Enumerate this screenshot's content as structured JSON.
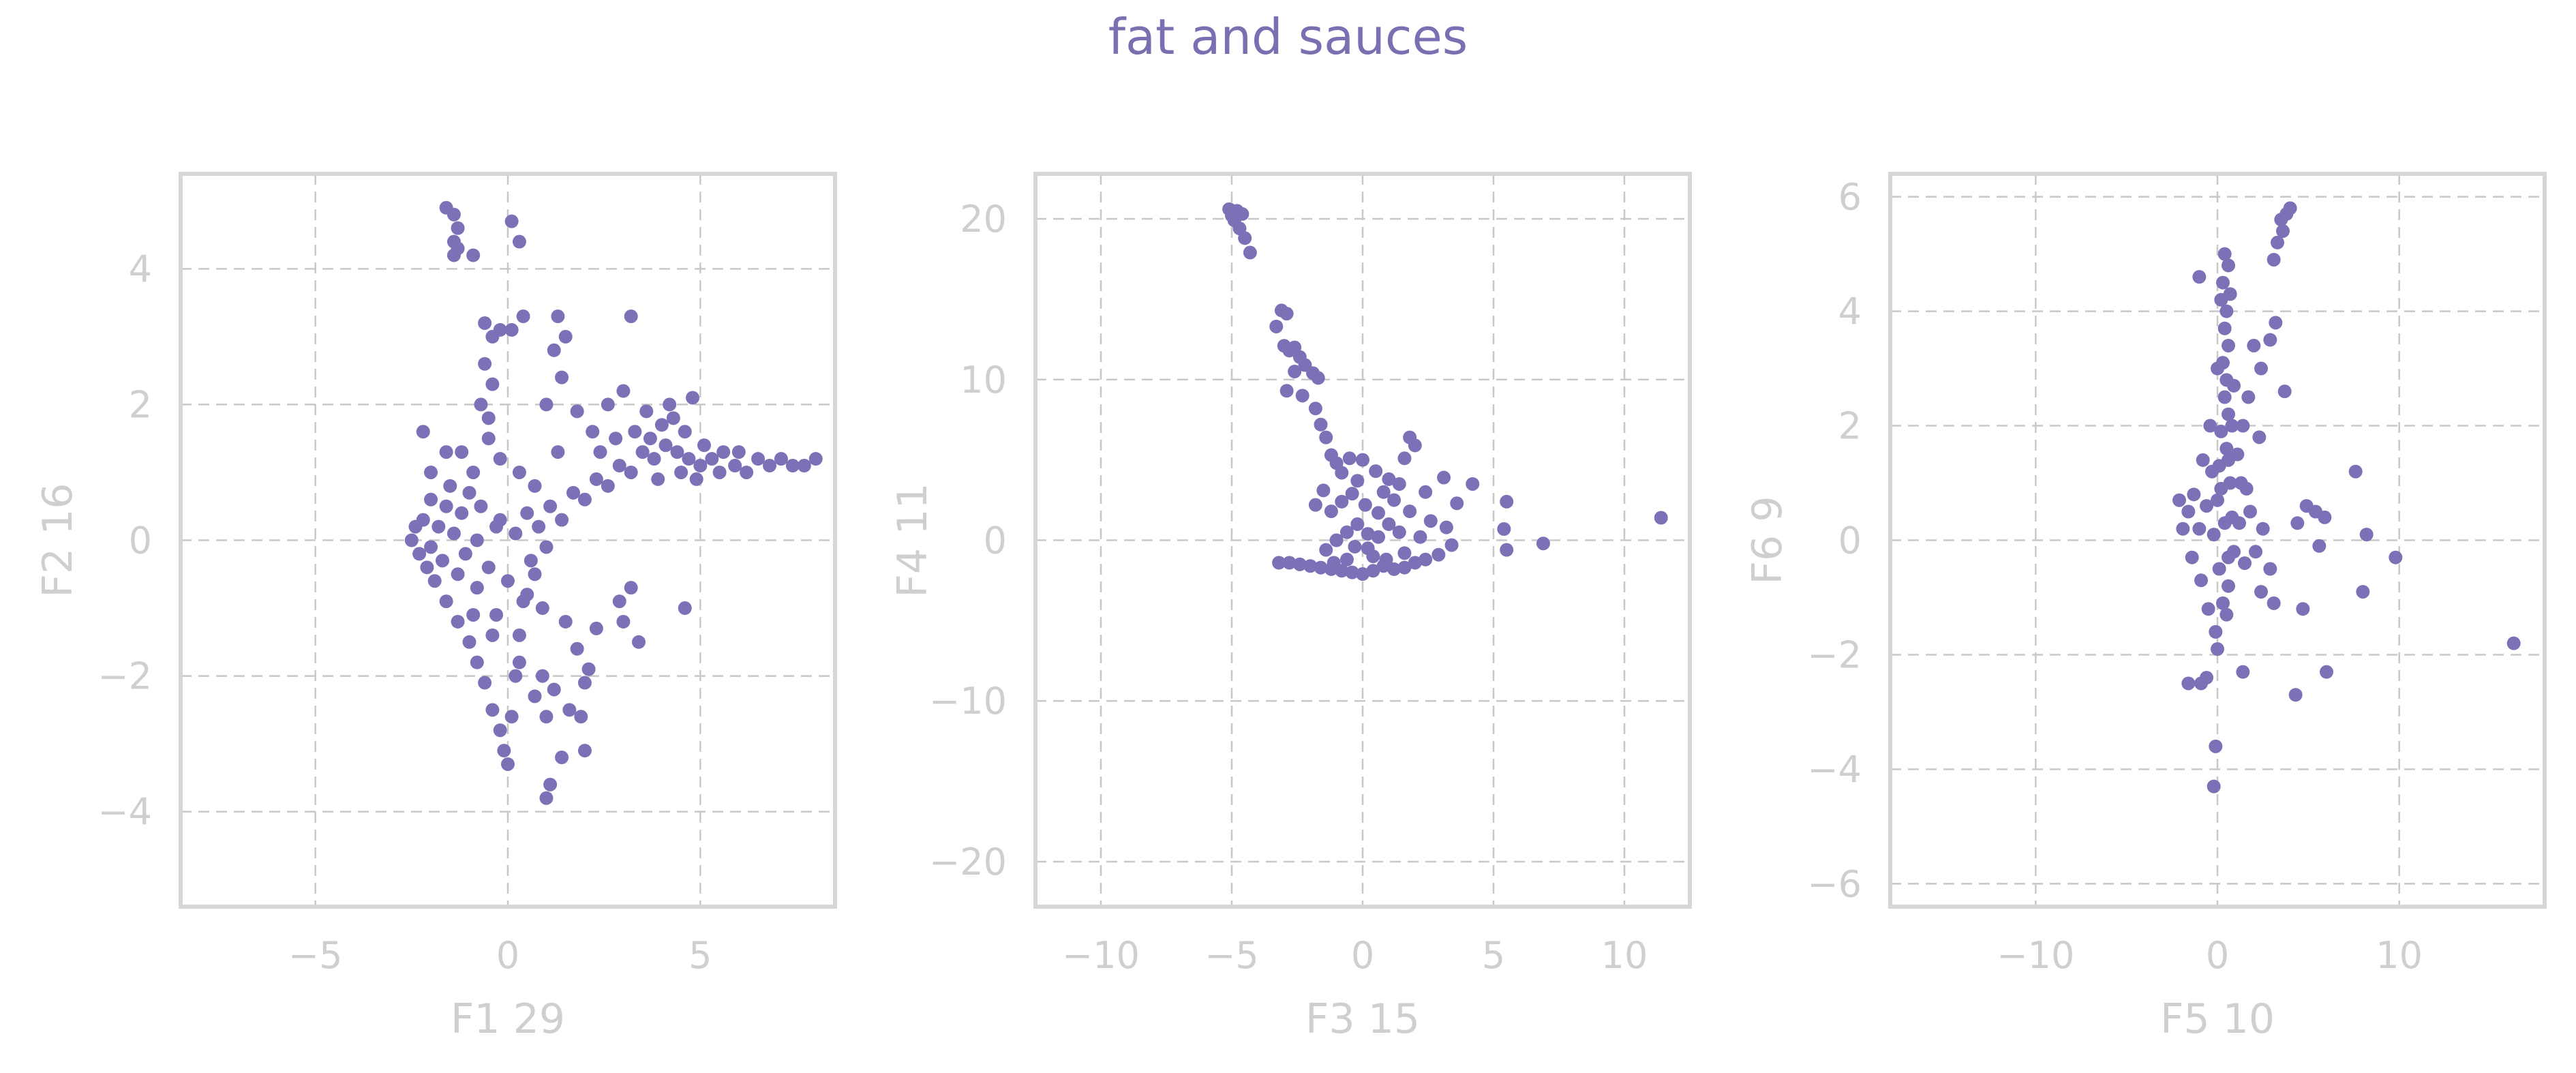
{
  "title": "fat and sauces",
  "colors": {
    "points": "#7e70b6",
    "title": "#7a6fb0",
    "axis_text": "#cfcfcf",
    "grid": "#c8c8c8",
    "frame": "#d6d6d6"
  },
  "chart_data": [
    {
      "type": "scatter",
      "xlabel": "F1 29",
      "ylabel": "F2 16",
      "xlim": [
        -8.5,
        8.5
      ],
      "ylim": [
        -5.4,
        5.4
      ],
      "xticks": [
        -5,
        0,
        5
      ],
      "yticks": [
        -4,
        -2,
        0,
        2,
        4
      ],
      "xtick_labels": [
        "−5",
        "0",
        "5"
      ],
      "ytick_labels": [
        "−4",
        "−2",
        "0",
        "2",
        "4"
      ],
      "grid": true,
      "points": [
        [
          -1.6,
          4.9
        ],
        [
          -1.4,
          4.8
        ],
        [
          -1.3,
          4.6
        ],
        [
          -1.4,
          4.4
        ],
        [
          -1.3,
          4.3
        ],
        [
          -1.4,
          4.2
        ],
        [
          -0.9,
          4.2
        ],
        [
          0.1,
          4.7
        ],
        [
          0.3,
          4.4
        ],
        [
          -2.5,
          0
        ],
        [
          -2.3,
          -0.2
        ],
        [
          -2.2,
          0.3
        ],
        [
          -2.1,
          -0.4
        ],
        [
          -2.0,
          0.6
        ],
        [
          -1.9,
          -0.6
        ],
        [
          -1.8,
          0.2
        ],
        [
          -1.6,
          -0.9
        ],
        [
          -1.5,
          0.8
        ],
        [
          -1.3,
          -1.2
        ],
        [
          -1.2,
          0.4
        ],
        [
          -1.0,
          -1.5
        ],
        [
          -0.9,
          1.0
        ],
        [
          -0.8,
          -1.8
        ],
        [
          -0.7,
          0.5
        ],
        [
          -0.6,
          -2.1
        ],
        [
          -0.5,
          1.5
        ],
        [
          -0.4,
          -2.5
        ],
        [
          -0.3,
          0.2
        ],
        [
          -0.2,
          -2.8
        ],
        [
          -0.1,
          -3.1
        ],
        [
          0.0,
          -3.3
        ],
        [
          0.1,
          -2.6
        ],
        [
          0.2,
          -2.0
        ],
        [
          0.3,
          -1.4
        ],
        [
          0.5,
          -0.8
        ],
        [
          0.6,
          -0.3
        ],
        [
          -2.0,
          -0.1
        ],
        [
          -1.7,
          -0.3
        ],
        [
          -1.4,
          0.1
        ],
        [
          -1.1,
          -0.2
        ],
        [
          -0.8,
          0.0
        ],
        [
          -0.5,
          -0.4
        ],
        [
          -0.2,
          0.3
        ],
        [
          0.2,
          0.1
        ],
        [
          0.5,
          0.4
        ],
        [
          0.8,
          0.2
        ],
        [
          1.1,
          0.5
        ],
        [
          1.4,
          0.3
        ],
        [
          1.7,
          0.7
        ],
        [
          2.0,
          0.6
        ],
        [
          2.3,
          0.9
        ],
        [
          2.6,
          0.8
        ],
        [
          2.9,
          1.1
        ],
        [
          3.2,
          1.0
        ],
        [
          3.5,
          1.3
        ],
        [
          3.8,
          1.2
        ],
        [
          4.1,
          1.4
        ],
        [
          4.4,
          1.3
        ],
        [
          4.7,
          1.2
        ],
        [
          5.0,
          1.1
        ],
        [
          5.3,
          1.2
        ],
        [
          5.6,
          1.3
        ],
        [
          5.9,
          1.1
        ],
        [
          6.2,
          1.0
        ],
        [
          6.5,
          1.2
        ],
        [
          6.8,
          1.1
        ],
        [
          7.1,
          1.2
        ],
        [
          7.4,
          1.1
        ],
        [
          7.7,
          1.1
        ],
        [
          8.0,
          1.2
        ],
        [
          5.5,
          1.0
        ],
        [
          6.0,
          1.3
        ],
        [
          4.0,
          1.7
        ],
        [
          3.6,
          1.9
        ],
        [
          4.3,
          1.8
        ],
        [
          3.0,
          2.2
        ],
        [
          2.6,
          2.0
        ],
        [
          2.2,
          1.6
        ],
        [
          1.8,
          1.9
        ],
        [
          1.4,
          2.4
        ],
        [
          1.0,
          2.0
        ],
        [
          1.2,
          2.8
        ],
        [
          1.5,
          3.0
        ],
        [
          1.3,
          3.3
        ],
        [
          3.2,
          3.3
        ],
        [
          -0.6,
          3.2
        ],
        [
          -0.4,
          3.0
        ],
        [
          -0.2,
          3.1
        ],
        [
          -0.6,
          2.6
        ],
        [
          -0.4,
          2.3
        ],
        [
          -0.7,
          2.0
        ],
        [
          -0.5,
          1.8
        ],
        [
          0.1,
          3.1
        ],
        [
          0.4,
          3.3
        ],
        [
          1.5,
          -1.2
        ],
        [
          1.8,
          -1.6
        ],
        [
          2.1,
          -1.9
        ],
        [
          1.2,
          -2.2
        ],
        [
          1.6,
          -2.5
        ],
        [
          2.0,
          -2.1
        ],
        [
          0.9,
          -2.0
        ],
        [
          1.0,
          -2.6
        ],
        [
          1.4,
          -3.2
        ],
        [
          2.0,
          -3.1
        ],
        [
          1.9,
          -2.6
        ],
        [
          2.3,
          -1.3
        ],
        [
          2.9,
          -0.9
        ],
        [
          3.4,
          -1.5
        ],
        [
          3.2,
          -0.7
        ],
        [
          4.6,
          -1.0
        ],
        [
          3.0,
          -1.2
        ],
        [
          1.0,
          -3.8
        ],
        [
          1.1,
          -3.6
        ],
        [
          0.7,
          -2.3
        ],
        [
          0.3,
          -1.8
        ],
        [
          -0.3,
          -1.1
        ],
        [
          0.9,
          -1.0
        ],
        [
          -1.0,
          0.7
        ],
        [
          -1.2,
          1.3
        ],
        [
          -2.2,
          1.6
        ],
        [
          -2.0,
          1.0
        ],
        [
          -1.6,
          1.3
        ],
        [
          -0.2,
          1.2
        ],
        [
          0.3,
          1.0
        ],
        [
          0.7,
          0.8
        ],
        [
          1.3,
          1.3
        ],
        [
          2.4,
          1.3
        ],
        [
          2.8,
          1.5
        ],
        [
          3.3,
          1.6
        ],
        [
          3.7,
          1.5
        ],
        [
          4.6,
          1.6
        ],
        [
          5.1,
          1.4
        ],
        [
          4.9,
          0.9
        ],
        [
          4.5,
          1.0
        ],
        [
          3.9,
          0.9
        ],
        [
          4.2,
          2.0
        ],
        [
          4.8,
          2.1
        ],
        [
          -0.8,
          -0.7
        ],
        [
          -1.3,
          -0.5
        ],
        [
          -0.9,
          -1.1
        ],
        [
          -0.4,
          -1.4
        ],
        [
          0.0,
          -0.6
        ],
        [
          0.4,
          -0.9
        ],
        [
          0.7,
          -0.5
        ],
        [
          1.0,
          -0.1
        ],
        [
          -1.6,
          0.5
        ],
        [
          -2.4,
          0.2
        ]
      ]
    },
    {
      "type": "scatter",
      "xlabel": "F3 15",
      "ylabel": "F4 11",
      "xlim": [
        -12.5,
        12.5
      ],
      "ylim": [
        -22.8,
        22.8
      ],
      "xticks": [
        -10,
        -5,
        0,
        5,
        10
      ],
      "yticks": [
        -20,
        -10,
        0,
        10,
        20
      ],
      "xtick_labels": [
        "−10",
        "−5",
        "0",
        "5",
        "10"
      ],
      "ytick_labels": [
        "−20",
        "−10",
        "0",
        "10",
        "20"
      ],
      "grid": true,
      "points": [
        [
          -5.1,
          20.6
        ],
        [
          -4.8,
          20.5
        ],
        [
          -4.9,
          19.9
        ],
        [
          -4.7,
          19.4
        ],
        [
          -4.5,
          18.8
        ],
        [
          -4.3,
          17.9
        ],
        [
          -5.0,
          20.2
        ],
        [
          -4.6,
          20.3
        ],
        [
          -3.1,
          14.3
        ],
        [
          -2.9,
          14.1
        ],
        [
          -3.3,
          13.3
        ],
        [
          -3.0,
          12.1
        ],
        [
          -2.8,
          11.8
        ],
        [
          -2.6,
          12.0
        ],
        [
          -2.4,
          11.4
        ],
        [
          -2.2,
          10.9
        ],
        [
          -1.9,
          10.4
        ],
        [
          -1.7,
          10.1
        ],
        [
          -2.6,
          10.5
        ],
        [
          -2.9,
          9.3
        ],
        [
          -2.3,
          9.0
        ],
        [
          -1.8,
          8.2
        ],
        [
          -1.6,
          7.2
        ],
        [
          -1.4,
          6.4
        ],
        [
          -1.2,
          5.3
        ],
        [
          -1.0,
          4.8
        ],
        [
          -0.8,
          4.2
        ],
        [
          -0.5,
          5.1
        ],
        [
          0.0,
          5.0
        ],
        [
          0.5,
          4.3
        ],
        [
          1.0,
          3.8
        ],
        [
          1.4,
          3.5
        ],
        [
          1.8,
          6.4
        ],
        [
          2.0,
          5.9
        ],
        [
          1.6,
          5.1
        ],
        [
          2.4,
          3.0
        ],
        [
          3.1,
          3.9
        ],
        [
          3.6,
          2.3
        ],
        [
          4.2,
          3.5
        ],
        [
          5.5,
          2.4
        ],
        [
          5.4,
          0.7
        ],
        [
          5.5,
          -0.6
        ],
        [
          6.9,
          -0.2
        ],
        [
          11.4,
          1.4
        ],
        [
          2.6,
          1.2
        ],
        [
          3.2,
          0.8
        ],
        [
          3.4,
          -0.3
        ],
        [
          2.9,
          -0.9
        ],
        [
          2.4,
          -1.2
        ],
        [
          2.0,
          -1.4
        ],
        [
          1.6,
          -1.7
        ],
        [
          1.2,
          -1.8
        ],
        [
          0.8,
          -1.6
        ],
        [
          0.4,
          -1.9
        ],
        [
          0.0,
          -2.1
        ],
        [
          -0.4,
          -2.0
        ],
        [
          -0.8,
          -1.9
        ],
        [
          -1.2,
          -1.8
        ],
        [
          -1.6,
          -1.7
        ],
        [
          -2.0,
          -1.6
        ],
        [
          -2.4,
          -1.5
        ],
        [
          -2.8,
          -1.4
        ],
        [
          -3.2,
          -1.4
        ],
        [
          -1.0,
          0.0
        ],
        [
          -0.6,
          0.5
        ],
        [
          -0.2,
          1.0
        ],
        [
          0.2,
          -0.5
        ],
        [
          0.6,
          0.2
        ],
        [
          1.0,
          1.0
        ],
        [
          1.4,
          0.5
        ],
        [
          -1.2,
          1.8
        ],
        [
          -0.8,
          2.4
        ],
        [
          -0.4,
          2.9
        ],
        [
          0.1,
          2.2
        ],
        [
          0.6,
          1.7
        ],
        [
          1.2,
          2.5
        ],
        [
          1.8,
          1.8
        ],
        [
          -1.5,
          3.1
        ],
        [
          -0.2,
          3.7
        ],
        [
          0.4,
          -1.0
        ],
        [
          -0.6,
          -1.2
        ],
        [
          -1.4,
          -0.6
        ],
        [
          0.9,
          -1.2
        ],
        [
          1.6,
          -0.8
        ],
        [
          2.2,
          0.2
        ],
        [
          -1.1,
          -1.4
        ],
        [
          0.2,
          0.4
        ],
        [
          -0.3,
          -0.4
        ],
        [
          0.8,
          3.0
        ],
        [
          -1.8,
          2.2
        ]
      ]
    },
    {
      "type": "scatter",
      "xlabel": "F5 10",
      "ylabel": "F6 9",
      "xlim": [
        -18,
        18
      ],
      "ylim": [
        -6.4,
        6.4
      ],
      "xticks": [
        -10,
        0,
        10
      ],
      "yticks": [
        -6,
        -4,
        -2,
        0,
        2,
        4,
        6
      ],
      "xtick_labels": [
        "−10",
        "0",
        "10"
      ],
      "ytick_labels": [
        "−6",
        "−4",
        "−2",
        "0",
        "2",
        "4",
        "6"
      ],
      "grid": true,
      "points": [
        [
          0.4,
          5.0
        ],
        [
          0.6,
          4.8
        ],
        [
          0.3,
          4.5
        ],
        [
          0.7,
          4.3
        ],
        [
          0.5,
          4.0
        ],
        [
          0.4,
          3.7
        ],
        [
          0.6,
          3.4
        ],
        [
          0.3,
          3.1
        ],
        [
          0.5,
          2.8
        ],
        [
          0.4,
          2.5
        ],
        [
          0.6,
          2.2
        ],
        [
          0.2,
          1.9
        ],
        [
          0.5,
          1.6
        ],
        [
          0.1,
          1.3
        ],
        [
          0.7,
          1.0
        ],
        [
          0.0,
          0.7
        ],
        [
          0.8,
          0.4
        ],
        [
          -0.2,
          0.1
        ],
        [
          0.9,
          -0.2
        ],
        [
          0.1,
          -0.5
        ],
        [
          0.6,
          -0.8
        ],
        [
          0.3,
          -1.1
        ],
        [
          0.5,
          -1.3
        ],
        [
          -0.1,
          -1.6
        ],
        [
          0.2,
          0.9
        ],
        [
          0.4,
          0.3
        ],
        [
          0.6,
          1.4
        ],
        [
          -1.0,
          4.6
        ],
        [
          -0.3,
          1.2
        ],
        [
          -0.6,
          0.6
        ],
        [
          -1.0,
          0.2
        ],
        [
          -1.3,
          0.8
        ],
        [
          -1.6,
          0.5
        ],
        [
          -1.9,
          0.2
        ],
        [
          -2.1,
          0.7
        ],
        [
          -1.4,
          -0.3
        ],
        [
          -0.9,
          -0.7
        ],
        [
          -0.5,
          -1.2
        ],
        [
          1.2,
          0.3
        ],
        [
          1.5,
          -0.4
        ],
        [
          1.8,
          0.5
        ],
        [
          2.1,
          -0.2
        ],
        [
          2.5,
          0.2
        ],
        [
          1.3,
          1.0
        ],
        [
          1.1,
          1.5
        ],
        [
          2.3,
          1.8
        ],
        [
          1.7,
          2.5
        ],
        [
          2.0,
          3.4
        ],
        [
          2.4,
          3.0
        ],
        [
          2.9,
          3.5
        ],
        [
          3.2,
          3.8
        ],
        [
          3.5,
          5.6
        ],
        [
          3.8,
          5.7
        ],
        [
          3.6,
          5.4
        ],
        [
          3.3,
          5.2
        ],
        [
          3.1,
          4.9
        ],
        [
          4.0,
          5.8
        ],
        [
          3.7,
          2.6
        ],
        [
          4.4,
          0.3
        ],
        [
          4.9,
          0.6
        ],
        [
          5.4,
          0.5
        ],
        [
          5.9,
          0.4
        ],
        [
          5.6,
          -0.1
        ],
        [
          4.7,
          -1.2
        ],
        [
          6.0,
          -2.3
        ],
        [
          7.6,
          1.2
        ],
        [
          8.2,
          0.1
        ],
        [
          8.0,
          -0.9
        ],
        [
          9.8,
          -0.3
        ],
        [
          16.3,
          -1.8
        ],
        [
          4.3,
          -2.7
        ],
        [
          2.4,
          -0.9
        ],
        [
          2.9,
          -0.5
        ],
        [
          3.1,
          -1.1
        ],
        [
          1.4,
          -2.3
        ],
        [
          -0.9,
          -2.5
        ],
        [
          -1.6,
          -2.5
        ],
        [
          -0.6,
          -2.4
        ],
        [
          -0.1,
          -3.6
        ],
        [
          -0.2,
          -4.3
        ],
        [
          0.0,
          -1.9
        ],
        [
          0.8,
          2.0
        ],
        [
          0.9,
          2.7
        ],
        [
          0.2,
          4.2
        ],
        [
          -0.4,
          2.0
        ],
        [
          1.4,
          2.0
        ],
        [
          -0.8,
          1.4
        ],
        [
          1.6,
          0.9
        ],
        [
          0.0,
          3.0
        ],
        [
          0.6,
          -0.3
        ]
      ]
    }
  ]
}
